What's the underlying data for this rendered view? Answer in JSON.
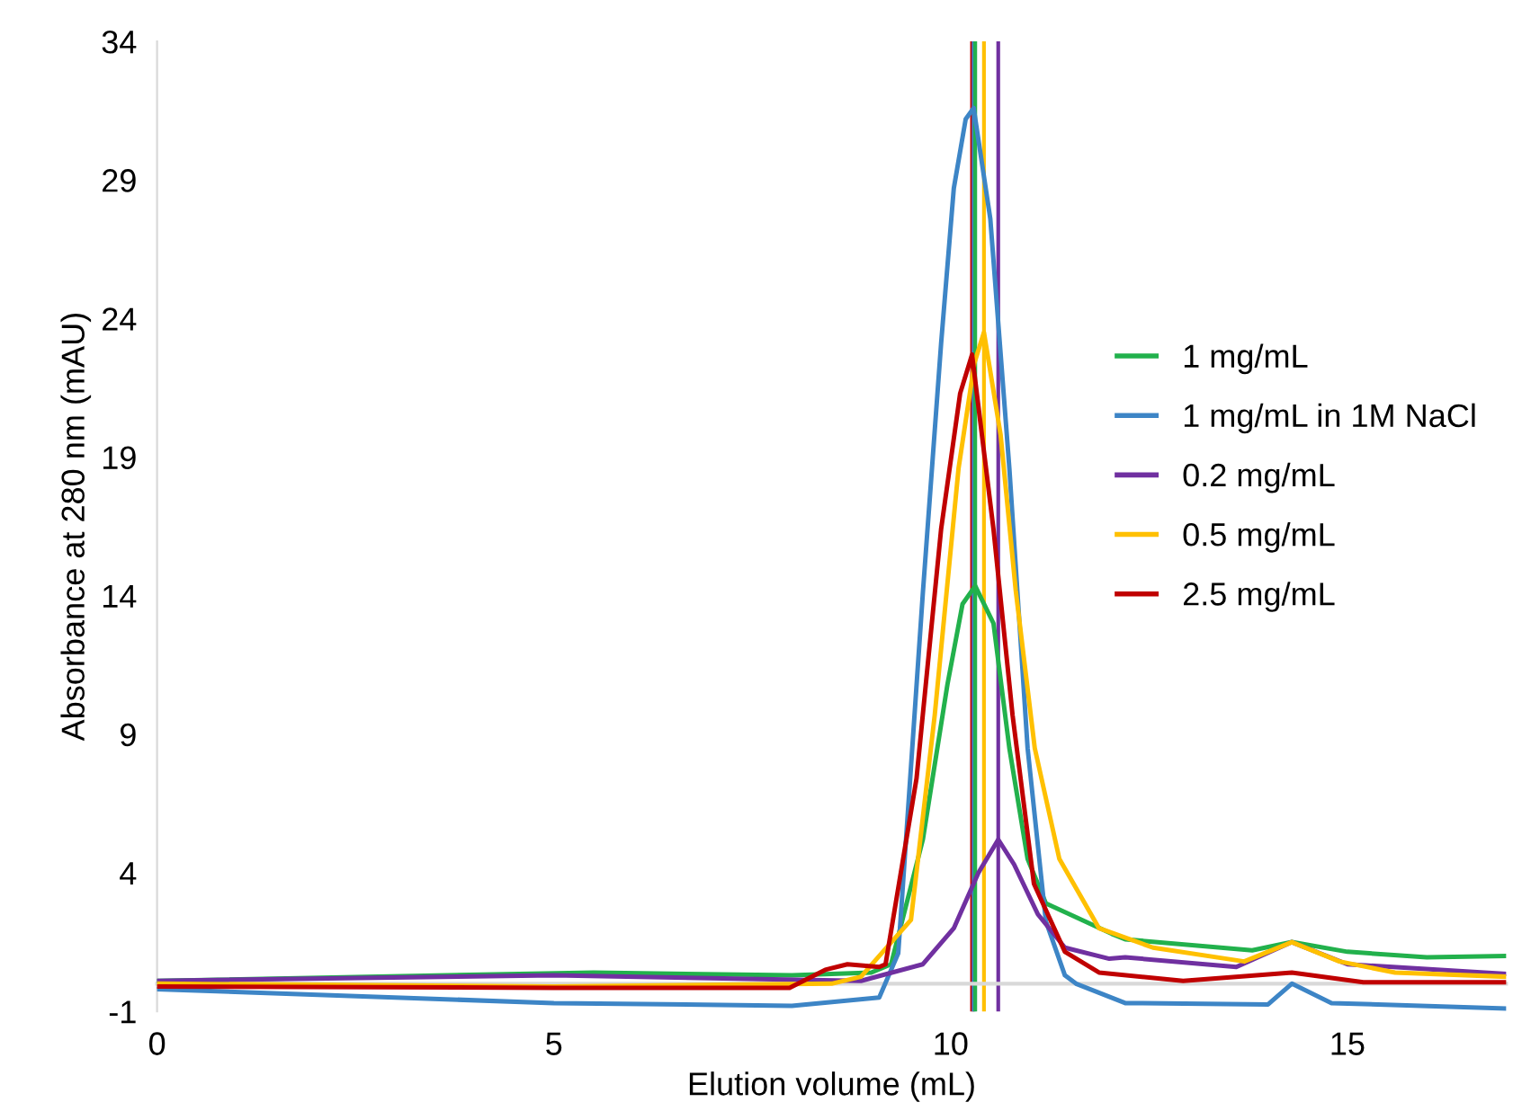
{
  "chart_data": {
    "type": "line",
    "xlabel": "Elution volume (mL)",
    "ylabel": "Absorbance at 280 nm (mAU)",
    "xlim": [
      0,
      17
    ],
    "xticks": [
      0,
      5,
      10,
      15
    ],
    "ylim": [
      -1,
      34
    ],
    "yticks": [
      -1,
      4,
      9,
      14,
      19,
      24,
      29,
      34
    ],
    "grid": false,
    "legend": "right",
    "marker": "none",
    "line_style": "solid",
    "series": [
      {
        "name": "1 mg/mL",
        "color": "#22b14c",
        "x": [
          0,
          5.5,
          8,
          9,
          9.25,
          9.65,
          9.96,
          10.15,
          10.31,
          10.54,
          10.74,
          10.97,
          11.2,
          12.03,
          12.2,
          13.8,
          14.3,
          15,
          16,
          17
        ],
        "values": [
          0.1,
          0.4,
          0.3,
          0.4,
          0.7,
          5.2,
          10.8,
          13.7,
          14.35,
          13.0,
          8.5,
          4.5,
          2.9,
          1.8,
          1.6,
          1.2,
          1.5,
          1.15,
          0.95,
          1.0
        ]
      },
      {
        "name": "1 mg/mL in 1M NaCl",
        "color": "#3d85c6",
        "x": [
          0,
          5,
          8,
          9.1,
          9.34,
          9.65,
          9.88,
          10.04,
          10.19,
          10.29,
          10.5,
          10.74,
          10.97,
          11.2,
          11.44,
          11.58,
          12.2,
          14,
          14.3,
          14.8,
          17
        ],
        "values": [
          -0.2,
          -0.7,
          -0.8,
          -0.5,
          1.1,
          14.1,
          23.1,
          28.7,
          31.2,
          31.6,
          27.6,
          18.6,
          8.5,
          2.25,
          0.3,
          0,
          -0.7,
          -0.75,
          0,
          -0.7,
          -0.9
        ]
      },
      {
        "name": "0.2 mg/mL",
        "color": "#7030a0",
        "x": [
          0,
          5,
          8.87,
          9.65,
          10.04,
          10.35,
          10.6,
          10.8,
          11.1,
          11.44,
          12.0,
          12.2,
          13.6,
          14.3,
          15,
          17
        ],
        "values": [
          0.1,
          0.3,
          0.1,
          0.7,
          2.0,
          4.0,
          5.2,
          4.3,
          2.5,
          1.3,
          0.9,
          0.95,
          0.6,
          1.5,
          0.7,
          0.35
        ]
      },
      {
        "name": "0.5 mg/mL",
        "color": "#ffc000",
        "x": [
          0,
          5,
          8.5,
          8.87,
          9.5,
          9.8,
          10.1,
          10.3,
          10.42,
          10.63,
          10.82,
          11.06,
          11.37,
          11.87,
          12.55,
          13.7,
          14.3,
          14.9,
          15.6,
          17
        ],
        "values": [
          0,
          -0.1,
          0,
          0.25,
          2.3,
          9.7,
          18.6,
          22.4,
          23.5,
          19.8,
          14.2,
          8.5,
          4.5,
          2.0,
          1.3,
          0.8,
          1.5,
          0.8,
          0.4,
          0.25
        ]
      },
      {
        "name": "2.5 mg/mL",
        "color": "#c00000",
        "x": [
          0,
          5,
          7.97,
          8.42,
          8.7,
          9.1,
          9.18,
          9.57,
          9.88,
          10.12,
          10.27,
          10.54,
          10.78,
          11.05,
          11.44,
          11.87,
          12.93,
          14.3,
          15.2,
          17
        ],
        "values": [
          -0.1,
          -0.15,
          -0.15,
          0.5,
          0.7,
          0.6,
          0.7,
          7.4,
          16.4,
          21.3,
          22.7,
          16.4,
          9.7,
          3.6,
          1.15,
          0.4,
          0.1,
          0.4,
          0.05,
          0.05
        ]
      }
    ],
    "ref_lines": [
      {
        "axis": "x",
        "value": 10.27,
        "color": "#c00000"
      },
      {
        "axis": "x",
        "value": 10.29,
        "color": "#3d85c6"
      },
      {
        "axis": "x",
        "value": 10.31,
        "color": "#22b14c"
      },
      {
        "axis": "x",
        "value": 10.42,
        "color": "#ffc000"
      },
      {
        "axis": "x",
        "value": 10.6,
        "color": "#7030a0"
      }
    ]
  }
}
